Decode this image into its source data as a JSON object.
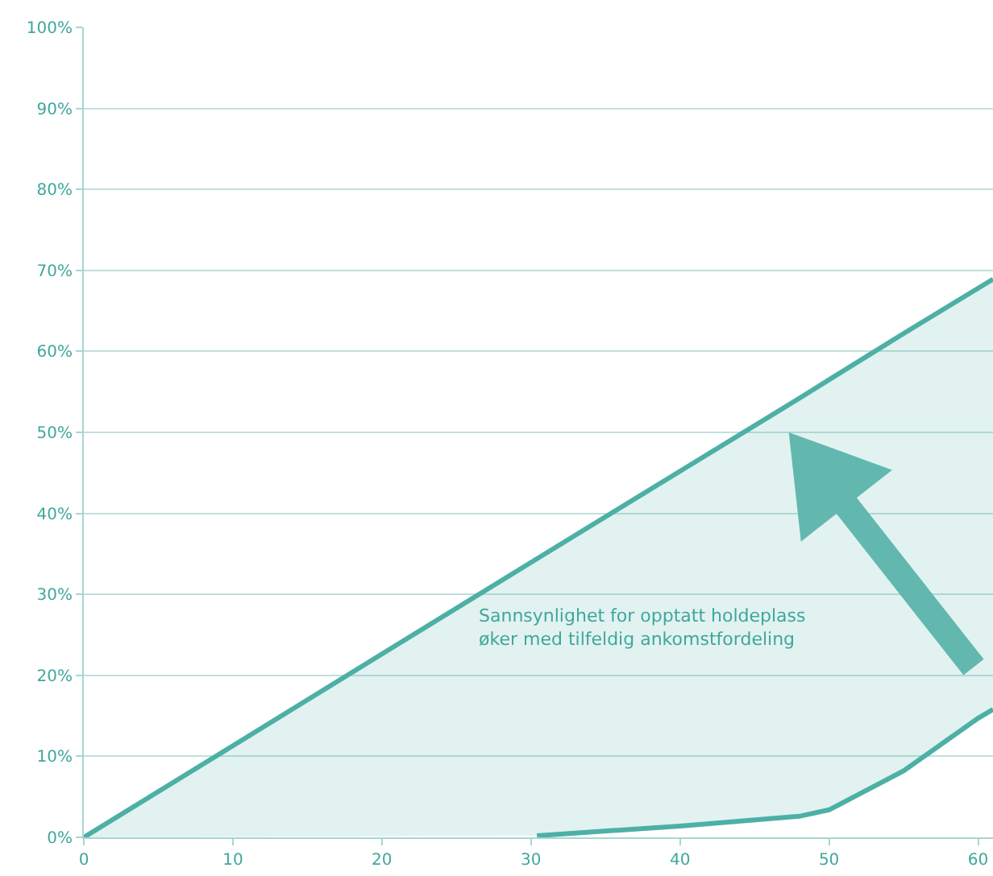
{
  "chart_data": {
    "type": "line",
    "series": [
      {
        "color": "#4db0a6",
        "x": [
          0,
          30.4,
          40,
          48,
          50,
          55,
          60,
          61
        ],
        "values": [
          0,
          34.4,
          45.2,
          54.2,
          56.5,
          62.2,
          67.8,
          68.9
        ],
        "lower": [
          0,
          0.2,
          1.4,
          2.6,
          3.4,
          8.2,
          14.7,
          15.8
        ],
        "upper": [
          0,
          34.4,
          45.2,
          54.2,
          56.5,
          62.2,
          67.8,
          68.9
        ]
      },
      {
        "color": "#4db0a6",
        "x": [
          30.4,
          40,
          48,
          50,
          55,
          60,
          61
        ],
        "values": [
          0.2,
          1.4,
          2.6,
          3.4,
          8.2,
          14.7,
          15.8
        ]
      }
    ],
    "xlim": [
      0,
      61
    ],
    "xticks": [
      0,
      10,
      20,
      30,
      40,
      50,
      60
    ],
    "ylim": [
      0,
      100
    ],
    "yticks": [
      {
        "value": 0,
        "label": "0%"
      },
      {
        "value": 10,
        "label": "10%"
      },
      {
        "value": 20,
        "label": "20%"
      },
      {
        "value": 30,
        "label": "30%"
      },
      {
        "value": 40,
        "label": "40%"
      },
      {
        "value": 50,
        "label": "50%"
      },
      {
        "value": 60,
        "label": "60%"
      },
      {
        "value": 70,
        "label": "70%"
      },
      {
        "value": 80,
        "label": "80%"
      },
      {
        "value": 90,
        "label": "90%"
      },
      {
        "value": 100,
        "label": "100%"
      }
    ],
    "grid": "y",
    "marker": "none",
    "line_style": "solid",
    "annotations": [
      "Sannsynlighet for opptatt holdeplass\nøker med tilfeldig ankomstfordeling"
    ]
  }
}
